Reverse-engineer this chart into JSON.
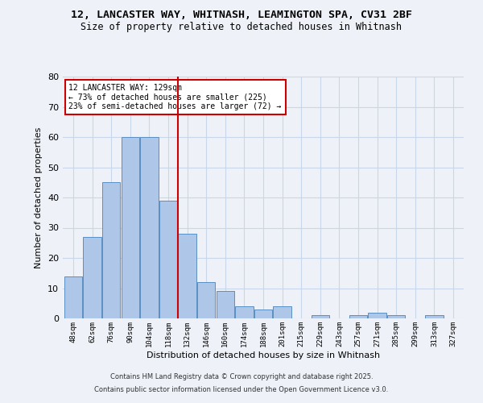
{
  "title_line1": "12, LANCASTER WAY, WHITNASH, LEAMINGTON SPA, CV31 2BF",
  "title_line2": "Size of property relative to detached houses in Whitnash",
  "bar_labels": [
    "48sqm",
    "62sqm",
    "76sqm",
    "90sqm",
    "104sqm",
    "118sqm",
    "132sqm",
    "146sqm",
    "160sqm",
    "174sqm",
    "188sqm",
    "201sqm",
    "215sqm",
    "229sqm",
    "243sqm",
    "257sqm",
    "271sqm",
    "285sqm",
    "299sqm",
    "313sqm",
    "327sqm"
  ],
  "bar_values": [
    14,
    27,
    45,
    60,
    60,
    39,
    28,
    12,
    9,
    4,
    3,
    4,
    0,
    1,
    0,
    1,
    2,
    1,
    0,
    1,
    0
  ],
  "bar_color": "#aec6e8",
  "bar_edge_color": "#5a8fc2",
  "grid_color": "#c8d8ea",
  "background_color": "#eef2f8",
  "property_line_color": "#cc0000",
  "property_line_bar_index": 6,
  "annotation_title": "12 LANCASTER WAY: 129sqm",
  "annotation_line1": "← 73% of detached houses are smaller (225)",
  "annotation_line2": "23% of semi-detached houses are larger (72) →",
  "annotation_box_edge": "#cc0000",
  "xlabel": "Distribution of detached houses by size in Whitnash",
  "ylabel": "Number of detached properties",
  "ylim": [
    0,
    80
  ],
  "yticks": [
    0,
    10,
    20,
    30,
    40,
    50,
    60,
    70,
    80
  ],
  "footer_line1": "Contains HM Land Registry data © Crown copyright and database right 2025.",
  "footer_line2": "Contains public sector information licensed under the Open Government Licence v3.0."
}
